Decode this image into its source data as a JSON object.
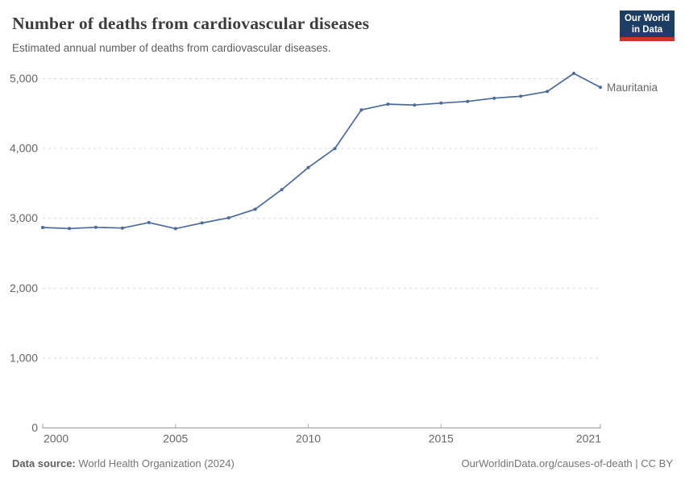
{
  "header": {
    "title": "Number of deaths from cardiovascular diseases",
    "subtitle": "Estimated annual number of deaths from cardiovascular diseases.",
    "logo_line1": "Our World",
    "logo_line2": "in Data"
  },
  "chart_data": {
    "type": "line",
    "title": "Number of deaths from cardiovascular diseases",
    "subtitle": "Estimated annual number of deaths from cardiovascular diseases.",
    "x": [
      2000,
      2001,
      2002,
      2003,
      2004,
      2005,
      2006,
      2007,
      2008,
      2009,
      2010,
      2011,
      2012,
      2013,
      2014,
      2015,
      2016,
      2017,
      2018,
      2019,
      2020,
      2021
    ],
    "series": [
      {
        "name": "Mauritania",
        "color": "#4C6A9C",
        "values": [
          2870,
          2854,
          2872,
          2861,
          2940,
          2853,
          2934,
          3007,
          3130,
          3411,
          3727,
          4000,
          4553,
          4635,
          4622,
          4650,
          4674,
          4720,
          4748,
          4816,
          5075,
          4875
        ]
      }
    ],
    "x_ticks": [
      2000,
      2005,
      2010,
      2015,
      2021
    ],
    "y_ticks": [
      0,
      1000,
      2000,
      3000,
      4000,
      5000
    ],
    "ylim": [
      0,
      5000
    ],
    "xlim": [
      2000,
      2021
    ],
    "xlabel": "",
    "ylabel": "",
    "grid": true,
    "legend_position": "end-of-line-label",
    "colors": {
      "line": "#4C6A9C",
      "gridline": "#d9d9d9",
      "axis": "#999999",
      "tick_label": "#666666"
    }
  },
  "footer": {
    "source_label": "Data source:",
    "source_text": "World Health Organization (2024)",
    "link_text": "OurWorldinData.org/causes-of-death | CC BY"
  }
}
